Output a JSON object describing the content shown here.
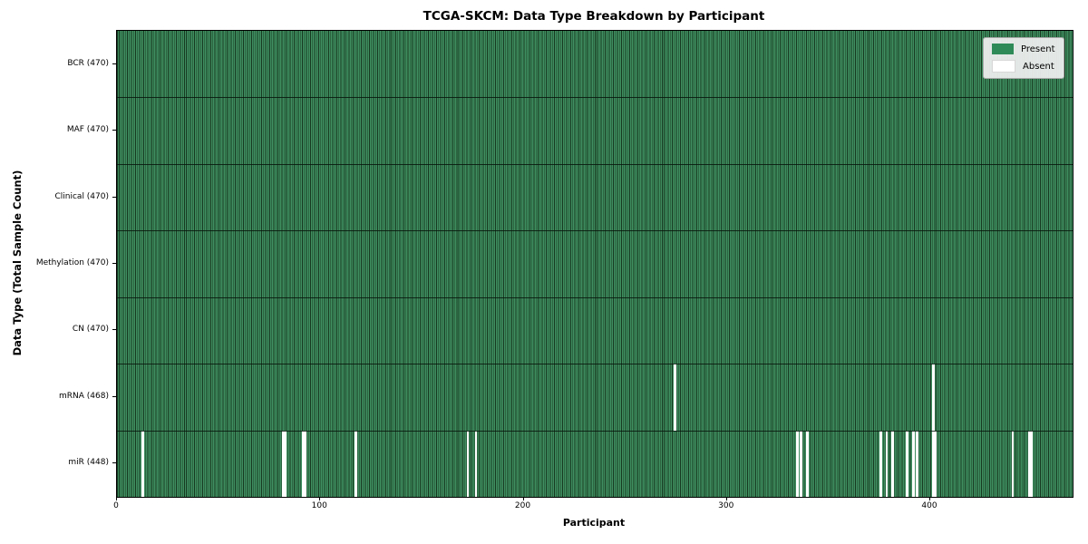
{
  "chart_data": {
    "type": "heatmap",
    "title": "TCGA-SKCM: Data Type Breakdown by Participant",
    "xlabel": "Participant",
    "ylabel": "Data Type (Total Sample Count)",
    "x_axis": {
      "ticks": [
        0,
        100,
        200,
        300,
        400
      ],
      "range": [
        0,
        470
      ]
    },
    "n_participants": 470,
    "rows": [
      {
        "data_type": "BCR",
        "label": "BCR (470)",
        "sample_count": 470,
        "absent_participants": []
      },
      {
        "data_type": "MAF",
        "label": "MAF (470)",
        "sample_count": 470,
        "absent_participants": []
      },
      {
        "data_type": "Clinical",
        "label": "Clinical (470)",
        "sample_count": 470,
        "absent_participants": []
      },
      {
        "data_type": "Methylation",
        "label": "Methylation (470)",
        "sample_count": 470,
        "absent_participants": []
      },
      {
        "data_type": "CN",
        "label": "CN (470)",
        "sample_count": 470,
        "absent_participants": []
      },
      {
        "data_type": "mRNA",
        "label": "mRNA (468)",
        "sample_count": 468,
        "absent_participants": [
          274,
          401
        ]
      },
      {
        "data_type": "miR",
        "label": "miR (448)",
        "sample_count": 448,
        "absent_participants": [
          12,
          81,
          82,
          91,
          92,
          117,
          172,
          176,
          334,
          336,
          339,
          375,
          378,
          381,
          388,
          391,
          393,
          401,
          402,
          440,
          448,
          449
        ]
      }
    ],
    "legend": [
      {
        "label": "Present",
        "color": "#2e8b57"
      },
      {
        "label": "Absent",
        "color": "#ffffff"
      }
    ],
    "colors": {
      "present_fill": "#3f8f61",
      "present_edge": "#17381f",
      "absent": "#ffffff",
      "row_divider": "rgba(8,22,13,0.85)"
    },
    "legend_position": "upper right",
    "grid": false
  }
}
